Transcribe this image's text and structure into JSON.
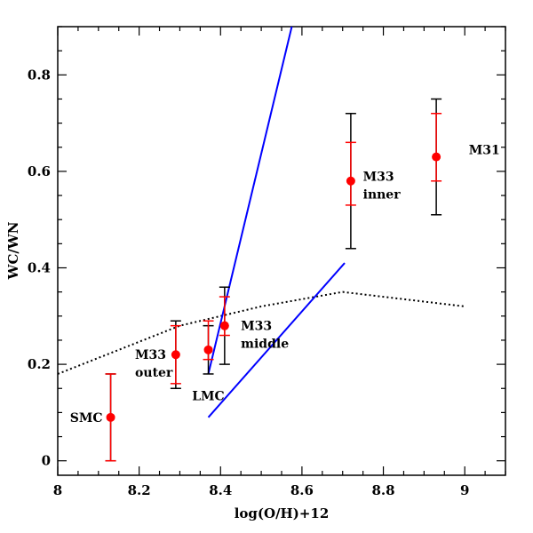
{
  "chart_data": {
    "type": "scatter",
    "xlabel": "log(O/H)+12",
    "ylabel": "WC/WN",
    "xlim": [
      8.0,
      9.1
    ],
    "ylim": [
      -0.03,
      0.9
    ],
    "xticks": [
      8,
      8.2,
      8.4,
      8.6,
      8.8,
      9
    ],
    "xtick_labels": [
      "8",
      "8.2",
      "8.4",
      "8.6",
      "8.8",
      "9"
    ],
    "yticks": [
      0,
      0.2,
      0.4,
      0.6,
      0.8
    ],
    "ytick_labels": [
      "0",
      "0.2",
      "0.4",
      "0.6",
      "0.8"
    ],
    "grid": false,
    "points": [
      {
        "x": 8.13,
        "y": 0.09,
        "err_red": [
          0.0,
          0.18
        ],
        "err_black": [
          0.0,
          0.18
        ]
      },
      {
        "x": 8.29,
        "y": 0.22,
        "err_red": [
          0.16,
          0.28
        ],
        "err_black": [
          0.15,
          0.29
        ]
      },
      {
        "x": 8.37,
        "y": 0.23,
        "err_red": [
          0.21,
          0.29
        ],
        "err_black": [
          0.18,
          0.28
        ]
      },
      {
        "x": 8.41,
        "y": 0.28,
        "err_red": [
          0.26,
          0.34
        ],
        "err_black": [
          0.2,
          0.36
        ]
      },
      {
        "x": 8.72,
        "y": 0.58,
        "err_red": [
          0.53,
          0.66
        ],
        "err_black": [
          0.44,
          0.72
        ]
      },
      {
        "x": 8.93,
        "y": 0.63,
        "err_red": [
          0.58,
          0.72
        ],
        "err_black": [
          0.51,
          0.75
        ]
      }
    ],
    "annotations": [
      {
        "lines": [
          "SMC"
        ],
        "x": 8.03,
        "y": 0.09
      },
      {
        "lines": [
          "M33",
          "outer"
        ],
        "x": 8.19,
        "y": 0.22
      },
      {
        "lines": [
          "LMC"
        ],
        "x": 8.33,
        "y": 0.135
      },
      {
        "lines": [
          "M33",
          "middle"
        ],
        "x": 8.45,
        "y": 0.28
      },
      {
        "lines": [
          "M33",
          "inner"
        ],
        "x": 8.75,
        "y": 0.59
      },
      {
        "lines": [
          "M31"
        ],
        "x": 9.01,
        "y": 0.645
      }
    ],
    "dotted_model": {
      "x": [
        8.0,
        8.3,
        8.5,
        8.7,
        9.0
      ],
      "y": [
        0.18,
        0.28,
        0.32,
        0.35,
        0.32
      ]
    },
    "blue_lines": [
      {
        "x": [
          8.37,
          8.575
        ],
        "y": [
          0.18,
          0.9
        ]
      },
      {
        "x": [
          8.37,
          8.705
        ],
        "y": [
          0.09,
          0.41
        ]
      }
    ],
    "colors": {
      "red": "#ff0000",
      "black": "#000000",
      "blue": "#0000ff"
    }
  }
}
